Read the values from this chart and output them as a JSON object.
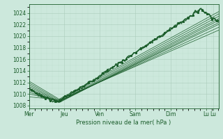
{
  "xlabel": "Pression niveau de la mer( hPa )",
  "bg_color": "#cce8dc",
  "grid_major_color": "#aaccbb",
  "grid_minor_color": "#bbddcc",
  "line_color": "#1a5c2a",
  "days": [
    "Mer",
    "Jeu",
    "Ven",
    "Sam",
    "Dim",
    "Lu"
  ],
  "day_positions": [
    0.0,
    1.0,
    2.0,
    3.0,
    4.0,
    5.0
  ],
  "ylim": [
    1007.5,
    1025.5
  ],
  "yticks": [
    1008,
    1010,
    1012,
    1014,
    1016,
    1018,
    1020,
    1022,
    1024
  ],
  "xlim": [
    0.0,
    5.35
  ],
  "n_points": 400,
  "xlabel_fontsize": 6.0,
  "tick_fontsize": 5.5
}
